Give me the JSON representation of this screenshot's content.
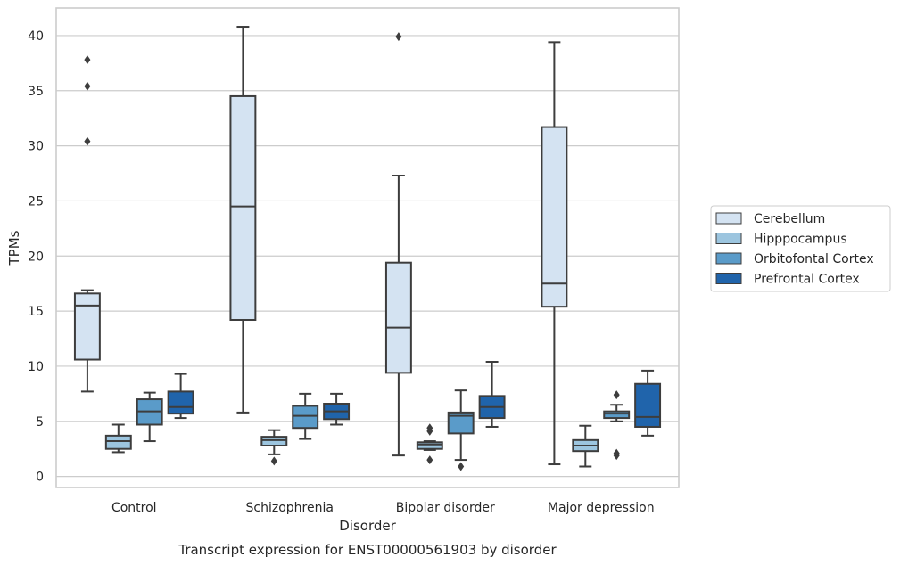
{
  "chart_data": {
    "type": "box",
    "caption": "Transcript expression for ENST00000561903 by disorder",
    "xlabel": "Disorder",
    "ylabel": "TPMs",
    "ylim": [
      -1,
      42.5
    ],
    "yticks": [
      0,
      5,
      10,
      15,
      20,
      25,
      30,
      35,
      40
    ],
    "grid": true,
    "legend_position": "right",
    "categories": [
      "Control",
      "Schizophrenia",
      "Bipolar disorder",
      "Major depression"
    ],
    "series": [
      {
        "name": "Cerebellum",
        "color": "#d4e3f2",
        "boxes": [
          {
            "whislo": 7.7,
            "q1": 10.6,
            "med": 15.5,
            "q3": 16.6,
            "whishi": 16.9,
            "fliers": [
              30.4,
              35.4,
              37.8
            ]
          },
          {
            "whislo": 5.8,
            "q1": 14.2,
            "med": 24.5,
            "q3": 34.5,
            "whishi": 40.8,
            "fliers": []
          },
          {
            "whislo": 1.9,
            "q1": 9.4,
            "med": 13.5,
            "q3": 19.4,
            "whishi": 27.3,
            "fliers": [
              39.9
            ]
          },
          {
            "whislo": 1.1,
            "q1": 15.4,
            "med": 17.5,
            "q3": 31.7,
            "whishi": 39.4,
            "fliers": []
          }
        ]
      },
      {
        "name": "Hipppocampus",
        "color": "#9cc5df",
        "boxes": [
          {
            "whislo": 2.2,
            "q1": 2.5,
            "med": 3.2,
            "q3": 3.7,
            "whishi": 4.7,
            "fliers": []
          },
          {
            "whislo": 2.0,
            "q1": 2.8,
            "med": 3.3,
            "q3": 3.6,
            "whishi": 4.2,
            "fliers": [
              1.4
            ]
          },
          {
            "whislo": 2.4,
            "q1": 2.5,
            "med": 2.9,
            "q3": 3.1,
            "whishi": 3.2,
            "fliers": [
              1.5,
              4.1,
              4.4
            ]
          },
          {
            "whislo": 0.9,
            "q1": 2.3,
            "med": 2.8,
            "q3": 3.3,
            "whishi": 4.6,
            "fliers": []
          }
        ]
      },
      {
        "name": "Orbitofontal Cortex",
        "color": "#5a9bc9",
        "boxes": [
          {
            "whislo": 3.2,
            "q1": 4.7,
            "med": 5.9,
            "q3": 7.0,
            "whishi": 7.6,
            "fliers": []
          },
          {
            "whislo": 3.4,
            "q1": 4.4,
            "med": 5.5,
            "q3": 6.4,
            "whishi": 7.5,
            "fliers": []
          },
          {
            "whislo": 1.5,
            "q1": 3.9,
            "med": 5.5,
            "q3": 5.8,
            "whishi": 7.8,
            "fliers": [
              0.9
            ]
          },
          {
            "whislo": 5.0,
            "q1": 5.3,
            "med": 5.7,
            "q3": 5.9,
            "whishi": 6.5,
            "fliers": [
              7.4,
              1.9,
              2.1
            ]
          }
        ]
      },
      {
        "name": "Prefrontal Cortex",
        "color": "#2064ab",
        "boxes": [
          {
            "whislo": 5.3,
            "q1": 5.7,
            "med": 6.3,
            "q3": 7.7,
            "whishi": 9.3,
            "fliers": []
          },
          {
            "whislo": 4.7,
            "q1": 5.2,
            "med": 5.9,
            "q3": 6.6,
            "whishi": 7.5,
            "fliers": []
          },
          {
            "whislo": 4.5,
            "q1": 5.3,
            "med": 6.3,
            "q3": 7.3,
            "whishi": 10.4,
            "fliers": []
          },
          {
            "whislo": 3.7,
            "q1": 4.5,
            "med": 5.4,
            "q3": 8.4,
            "whishi": 9.6,
            "fliers": []
          }
        ]
      }
    ]
  }
}
